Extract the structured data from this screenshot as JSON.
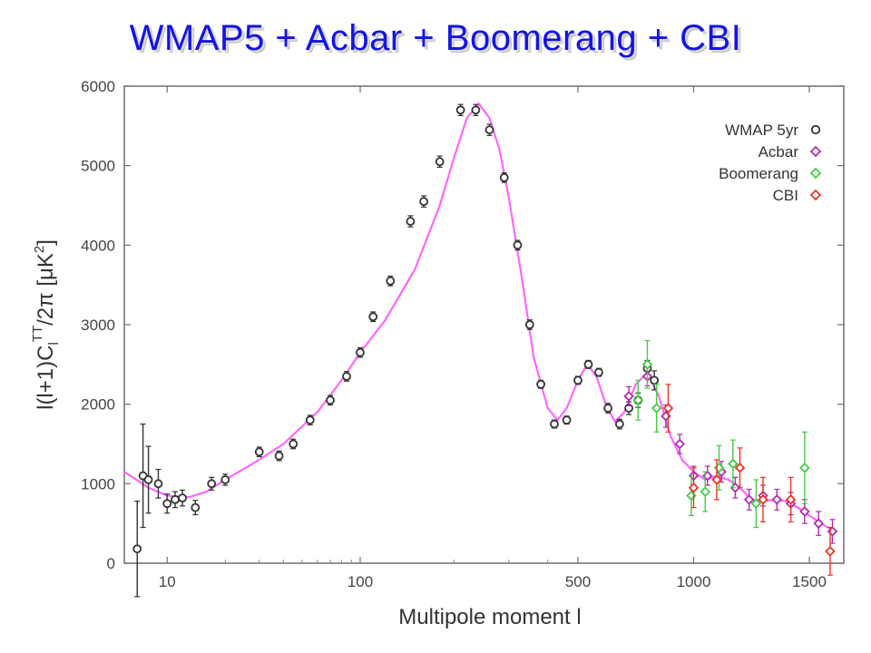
{
  "slide": {
    "title": "WMAP5 + Acbar + Boomerang + CBI"
  },
  "chart_data": {
    "type": "scatter",
    "xlabel": "Multipole moment  l",
    "ylabel": "l(l+1)C_l^TT/2π [μK²]",
    "ylabel_parts": {
      "base": "l(l+1)C",
      "sub": "l",
      "sup": "TT",
      "tail": "/2π [μK",
      "sup2": "2",
      "end": "]"
    },
    "x_scale": "log below 100, linear from 500 to 1500",
    "xlim": [
      6,
      1620
    ],
    "ylim": [
      0,
      6000
    ],
    "x_ticks": [
      {
        "value": 10,
        "label": "10"
      },
      {
        "value": 100,
        "label": "100"
      },
      {
        "value": 500,
        "label": "500"
      },
      {
        "value": 1000,
        "label": "1000"
      },
      {
        "value": 1500,
        "label": "1500"
      }
    ],
    "y_ticks": [
      {
        "value": 0,
        "label": "0"
      },
      {
        "value": 1000,
        "label": "1000"
      },
      {
        "value": 2000,
        "label": "2000"
      },
      {
        "value": 3000,
        "label": "3000"
      },
      {
        "value": 4000,
        "label": "4000"
      },
      {
        "value": 5000,
        "label": "5000"
      },
      {
        "value": 6000,
        "label": "6000"
      }
    ],
    "legend_position": "top-right",
    "colors": {
      "model_curve": "#ff66ff",
      "wmap": "#333333",
      "acbar": "#b02bb0",
      "boomerang": "#44cc44",
      "cbi": "#ee3322"
    },
    "model_curve": [
      [
        6,
        1150
      ],
      [
        8,
        950
      ],
      [
        10,
        850
      ],
      [
        13,
        830
      ],
      [
        16,
        900
      ],
      [
        20,
        1050
      ],
      [
        30,
        1300
      ],
      [
        40,
        1500
      ],
      [
        60,
        1900
      ],
      [
        80,
        2300
      ],
      [
        100,
        2650
      ],
      [
        120,
        3050
      ],
      [
        150,
        3700
      ],
      [
        180,
        4500
      ],
      [
        200,
        5100
      ],
      [
        220,
        5600
      ],
      [
        240,
        5780
      ],
      [
        260,
        5600
      ],
      [
        280,
        5200
      ],
      [
        300,
        4600
      ],
      [
        330,
        3600
      ],
      [
        360,
        2600
      ],
      [
        400,
        1950
      ],
      [
        430,
        1800
      ],
      [
        460,
        1950
      ],
      [
        500,
        2300
      ],
      [
        540,
        2500
      ],
      [
        580,
        2350
      ],
      [
        620,
        2000
      ],
      [
        660,
        1780
      ],
      [
        700,
        1900
      ],
      [
        750,
        2250
      ],
      [
        800,
        2400
      ],
      [
        850,
        2100
      ],
      [
        900,
        1600
      ],
      [
        950,
        1300
      ],
      [
        1000,
        1150
      ],
      [
        1050,
        1050
      ],
      [
        1100,
        1100
      ],
      [
        1150,
        1050
      ],
      [
        1200,
        950
      ],
      [
        1250,
        800
      ],
      [
        1300,
        780
      ],
      [
        1350,
        800
      ],
      [
        1400,
        780
      ],
      [
        1450,
        700
      ],
      [
        1500,
        600
      ],
      [
        1550,
        500
      ],
      [
        1600,
        420
      ],
      [
        1620,
        400
      ]
    ],
    "series": [
      {
        "name": "WMAP 5yr",
        "marker": "circle",
        "color": "#333333",
        "points": [
          [
            7,
            180,
            600
          ],
          [
            7.5,
            1100,
            650
          ],
          [
            8,
            1050,
            420
          ],
          [
            9,
            1000,
            180
          ],
          [
            10,
            750,
            120
          ],
          [
            11,
            800,
            100
          ],
          [
            12,
            820,
            100
          ],
          [
            14,
            700,
            90
          ],
          [
            17,
            1000,
            80
          ],
          [
            20,
            1050,
            70
          ],
          [
            30,
            1400,
            60
          ],
          [
            38,
            1350,
            60
          ],
          [
            45,
            1500,
            60
          ],
          [
            55,
            1800,
            60
          ],
          [
            70,
            2050,
            60
          ],
          [
            85,
            2350,
            60
          ],
          [
            100,
            2650,
            60
          ],
          [
            110,
            3100,
            60
          ],
          [
            125,
            3550,
            60
          ],
          [
            145,
            4300,
            70
          ],
          [
            160,
            4550,
            70
          ],
          [
            180,
            5050,
            70
          ],
          [
            210,
            5700,
            70
          ],
          [
            235,
            5700,
            70
          ],
          [
            260,
            5450,
            70
          ],
          [
            290,
            4850,
            60
          ],
          [
            320,
            4000,
            60
          ],
          [
            350,
            3000,
            60
          ],
          [
            380,
            2250,
            50
          ],
          [
            420,
            1750,
            50
          ],
          [
            460,
            1800,
            50
          ],
          [
            500,
            2300,
            50
          ],
          [
            545,
            2500,
            50
          ],
          [
            590,
            2400,
            50
          ],
          [
            630,
            1950,
            60
          ],
          [
            680,
            1750,
            60
          ],
          [
            720,
            1950,
            80
          ],
          [
            760,
            2050,
            90
          ],
          [
            800,
            2450,
            100
          ],
          [
            830,
            2300,
            120
          ]
        ]
      },
      {
        "name": "Acbar",
        "marker": "diamond",
        "color": "#b02bb0",
        "points": [
          [
            720,
            2100,
            120
          ],
          [
            800,
            2350,
            120
          ],
          [
            880,
            1850,
            140
          ],
          [
            940,
            1500,
            120
          ],
          [
            1000,
            1100,
            120
          ],
          [
            1060,
            1100,
            120
          ],
          [
            1120,
            1150,
            130
          ],
          [
            1180,
            950,
            130
          ],
          [
            1240,
            800,
            130
          ],
          [
            1300,
            850,
            130
          ],
          [
            1360,
            800,
            130
          ],
          [
            1420,
            750,
            140
          ],
          [
            1480,
            650,
            150
          ],
          [
            1540,
            500,
            150
          ],
          [
            1600,
            400,
            150
          ]
        ]
      },
      {
        "name": "Boomerang",
        "marker": "diamond",
        "color": "#44cc44",
        "points": [
          [
            760,
            2050,
            250
          ],
          [
            800,
            2500,
            300
          ],
          [
            840,
            1950,
            300
          ],
          [
            990,
            850,
            250
          ],
          [
            1050,
            900,
            250
          ],
          [
            1110,
            1200,
            280
          ],
          [
            1170,
            1250,
            300
          ],
          [
            1270,
            750,
            300
          ],
          [
            1480,
            1200,
            450
          ]
        ]
      },
      {
        "name": "CBI",
        "marker": "diamond",
        "color": "#ee3322",
        "points": [
          [
            890,
            1950,
            300
          ],
          [
            1000,
            950,
            250
          ],
          [
            1100,
            1050,
            250
          ],
          [
            1200,
            1200,
            250
          ],
          [
            1300,
            800,
            280
          ],
          [
            1420,
            800,
            280
          ],
          [
            1590,
            150,
            300
          ]
        ]
      }
    ]
  }
}
